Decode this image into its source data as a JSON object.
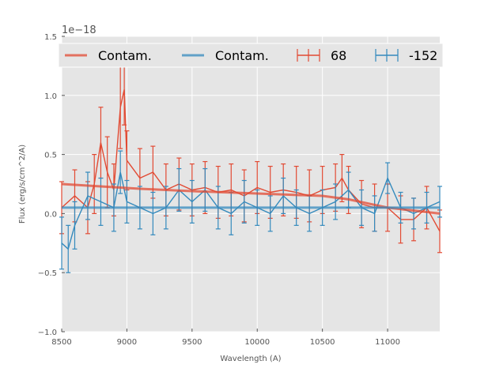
{
  "chart_data": {
    "type": "line",
    "title": "",
    "xlabel": "Wavelength (A)",
    "ylabel": "Flux (erg/s/cm^2/A)",
    "offset_text": "1e−18",
    "xlim": [
      8500,
      11400
    ],
    "ylim": [
      -1.0,
      1.5
    ],
    "y_scale_factor": 1e-18,
    "grid": true,
    "legend_position": "top",
    "x_ticks": [
      8500,
      9000,
      9500,
      10000,
      10500,
      11000
    ],
    "x_tick_labels": [
      "8500",
      "9000",
      "9500",
      "10000",
      "10500",
      "11000"
    ],
    "y_ticks": [
      -1.0,
      -0.5,
      0.0,
      0.5,
      1.0,
      1.5
    ],
    "y_tick_labels": [
      "−1.0",
      "−0.5",
      "0.0",
      "0.5",
      "1.0",
      "1.5"
    ],
    "colors": {
      "red": "#e24a33",
      "blue": "#348abd",
      "bg": "#e5e5e5"
    },
    "legend": [
      {
        "label": "Contam.",
        "kind": "line",
        "color": "#e24a33"
      },
      {
        "label": "Contam.",
        "kind": "line",
        "color": "#348abd"
      },
      {
        "label": "68",
        "kind": "errorbar",
        "color": "#e24a33"
      },
      {
        "label": "-152",
        "kind": "errorbar",
        "color": "#348abd"
      }
    ],
    "series": [
      {
        "name": "68",
        "kind": "errorbar",
        "color": "#e24a33",
        "x": [
          8500,
          8600,
          8700,
          8750,
          8800,
          8850,
          8900,
          8950,
          8980,
          9000,
          9100,
          9200,
          9300,
          9400,
          9500,
          9600,
          9700,
          9800,
          9900,
          10000,
          10100,
          10200,
          10300,
          10400,
          10500,
          10600,
          10650,
          10700,
          10800,
          10900,
          11000,
          11100,
          11200,
          11300,
          11400
        ],
        "y": [
          0.05,
          0.15,
          0.05,
          0.25,
          0.6,
          0.35,
          0.2,
          0.9,
          1.05,
          0.45,
          0.3,
          0.35,
          0.2,
          0.25,
          0.2,
          0.22,
          0.18,
          0.2,
          0.15,
          0.22,
          0.18,
          0.2,
          0.18,
          0.15,
          0.2,
          0.22,
          0.3,
          0.2,
          0.08,
          0.05,
          0.05,
          -0.05,
          -0.05,
          0.05,
          -0.15
        ],
        "yerr": [
          0.22,
          0.22,
          0.22,
          0.25,
          0.3,
          0.3,
          0.22,
          0.35,
          0.3,
          0.25,
          0.25,
          0.22,
          0.22,
          0.22,
          0.22,
          0.22,
          0.22,
          0.22,
          0.22,
          0.22,
          0.22,
          0.22,
          0.22,
          0.22,
          0.2,
          0.2,
          0.2,
          0.2,
          0.2,
          0.2,
          0.2,
          0.2,
          0.18,
          0.18,
          0.18
        ]
      },
      {
        "name": "-152",
        "kind": "errorbar",
        "color": "#348abd",
        "x": [
          8500,
          8550,
          8600,
          8700,
          8800,
          8900,
          8950,
          9000,
          9100,
          9200,
          9300,
          9400,
          9500,
          9600,
          9700,
          9800,
          9900,
          10000,
          10100,
          10200,
          10300,
          10400,
          10500,
          10600,
          10700,
          10800,
          10900,
          11000,
          11100,
          11200,
          11300,
          11400
        ],
        "y": [
          -0.25,
          -0.3,
          -0.1,
          0.15,
          0.1,
          0.05,
          0.35,
          0.1,
          0.05,
          0.0,
          0.05,
          0.2,
          0.1,
          0.2,
          0.05,
          0.0,
          0.1,
          0.05,
          0.0,
          0.15,
          0.05,
          0.0,
          0.05,
          0.1,
          0.2,
          0.05,
          0.0,
          0.3,
          0.05,
          0.0,
          0.05,
          0.1
        ],
        "yerr": [
          0.22,
          0.2,
          0.2,
          0.2,
          0.2,
          0.2,
          0.18,
          0.18,
          0.18,
          0.18,
          0.18,
          0.18,
          0.18,
          0.18,
          0.18,
          0.18,
          0.18,
          0.15,
          0.15,
          0.15,
          0.15,
          0.15,
          0.15,
          0.15,
          0.15,
          0.15,
          0.15,
          0.13,
          0.13,
          0.13,
          0.13,
          0.13
        ]
      },
      {
        "name": "Contam.",
        "kind": "line",
        "color": "#e24a33",
        "x": [
          8500,
          8800,
          9100,
          9500,
          10000,
          10500,
          10700,
          11000,
          11400
        ],
        "y": [
          0.25,
          0.23,
          0.21,
          0.19,
          0.17,
          0.15,
          0.12,
          0.05,
          0.0
        ]
      },
      {
        "name": "Contam.",
        "kind": "line",
        "color": "#348abd",
        "x": [
          8500,
          9000,
          9500,
          10000,
          10500,
          11000,
          11400
        ],
        "y": [
          0.05,
          0.05,
          0.05,
          0.05,
          0.05,
          0.05,
          0.05
        ]
      }
    ]
  }
}
